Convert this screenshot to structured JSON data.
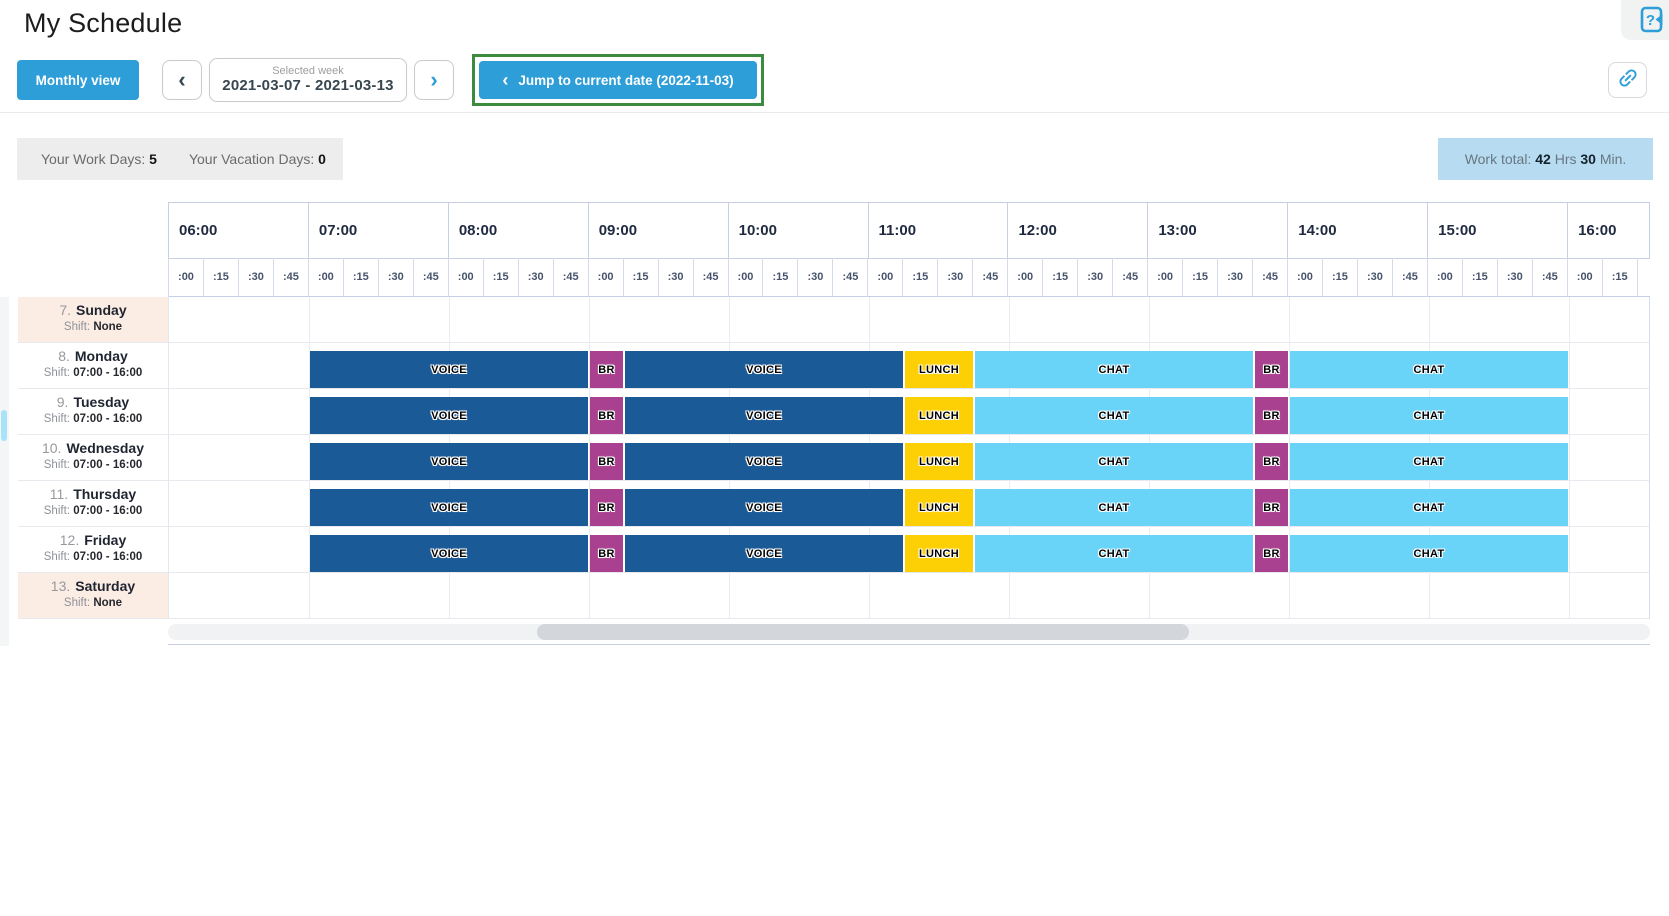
{
  "header": {
    "title": "My Schedule"
  },
  "toolbar": {
    "monthly_view_label": "Monthly view",
    "prev_icon": "‹",
    "next_icon": "›",
    "selected_week_label": "Selected week",
    "selected_week_value": "2021-03-07 - 2021-03-13",
    "jump_chevron_icon": "‹",
    "jump_label": "Jump to current date (2022-11-03)",
    "highlight_color": "#3c8c40",
    "accent_color": "#2d9ed8"
  },
  "summary": {
    "work_days_label": "Your Work Days:",
    "work_days_value": "5",
    "vacation_days_label": "Your Vacation Days:",
    "vacation_days_value": "0",
    "work_total_label": "Work total:",
    "work_total_hours": "42",
    "work_total_hours_unit": "Hrs",
    "work_total_minutes": "30",
    "work_total_minutes_unit": "Min."
  },
  "schedule": {
    "hours": [
      "06:00",
      "07:00",
      "08:00",
      "09:00",
      "10:00",
      "11:00",
      "12:00",
      "13:00",
      "14:00",
      "15:00",
      "16:00"
    ],
    "quarters": [
      ":00",
      ":15",
      ":30",
      ":45"
    ],
    "colors": {
      "voice": "#1a5a97",
      "br": "#aa4190",
      "lunch": "#fdd005",
      "chat": "#69d4f8"
    },
    "days": [
      {
        "number": "7.",
        "name": "Sunday",
        "shift_label": "Shift:",
        "shift_value": "None",
        "weekend": true,
        "activities": []
      },
      {
        "number": "8.",
        "name": "Monday",
        "shift_label": "Shift:",
        "shift_value": "07:00 - 16:00",
        "weekend": false,
        "activities": [
          {
            "type": "voice",
            "label": "VOICE",
            "start": 7,
            "end": 9
          },
          {
            "type": "br",
            "label": "BR",
            "start": 9,
            "end": 9.25
          },
          {
            "type": "voice",
            "label": "VOICE",
            "start": 9.25,
            "end": 11.25
          },
          {
            "type": "lunch",
            "label": "LUNCH",
            "start": 11.25,
            "end": 11.75
          },
          {
            "type": "chat",
            "label": "CHAT",
            "start": 11.75,
            "end": 13.75
          },
          {
            "type": "br",
            "label": "BR",
            "start": 13.75,
            "end": 14
          },
          {
            "type": "chat",
            "label": "CHAT",
            "start": 14,
            "end": 16
          }
        ]
      },
      {
        "number": "9.",
        "name": "Tuesday",
        "shift_label": "Shift:",
        "shift_value": "07:00 - 16:00",
        "weekend": false,
        "activities": [
          {
            "type": "voice",
            "label": "VOICE",
            "start": 7,
            "end": 9
          },
          {
            "type": "br",
            "label": "BR",
            "start": 9,
            "end": 9.25
          },
          {
            "type": "voice",
            "label": "VOICE",
            "start": 9.25,
            "end": 11.25
          },
          {
            "type": "lunch",
            "label": "LUNCH",
            "start": 11.25,
            "end": 11.75
          },
          {
            "type": "chat",
            "label": "CHAT",
            "start": 11.75,
            "end": 13.75
          },
          {
            "type": "br",
            "label": "BR",
            "start": 13.75,
            "end": 14
          },
          {
            "type": "chat",
            "label": "CHAT",
            "start": 14,
            "end": 16
          }
        ]
      },
      {
        "number": "10.",
        "name": "Wednesday",
        "shift_label": "Shift:",
        "shift_value": "07:00 - 16:00",
        "weekend": false,
        "activities": [
          {
            "type": "voice",
            "label": "VOICE",
            "start": 7,
            "end": 9
          },
          {
            "type": "br",
            "label": "BR",
            "start": 9,
            "end": 9.25
          },
          {
            "type": "voice",
            "label": "VOICE",
            "start": 9.25,
            "end": 11.25
          },
          {
            "type": "lunch",
            "label": "LUNCH",
            "start": 11.25,
            "end": 11.75
          },
          {
            "type": "chat",
            "label": "CHAT",
            "start": 11.75,
            "end": 13.75
          },
          {
            "type": "br",
            "label": "BR",
            "start": 13.75,
            "end": 14
          },
          {
            "type": "chat",
            "label": "CHAT",
            "start": 14,
            "end": 16
          }
        ]
      },
      {
        "number": "11.",
        "name": "Thursday",
        "shift_label": "Shift:",
        "shift_value": "07:00 - 16:00",
        "weekend": false,
        "activities": [
          {
            "type": "voice",
            "label": "VOICE",
            "start": 7,
            "end": 9
          },
          {
            "type": "br",
            "label": "BR",
            "start": 9,
            "end": 9.25
          },
          {
            "type": "voice",
            "label": "VOICE",
            "start": 9.25,
            "end": 11.25
          },
          {
            "type": "lunch",
            "label": "LUNCH",
            "start": 11.25,
            "end": 11.75
          },
          {
            "type": "chat",
            "label": "CHAT",
            "start": 11.75,
            "end": 13.75
          },
          {
            "type": "br",
            "label": "BR",
            "start": 13.75,
            "end": 14
          },
          {
            "type": "chat",
            "label": "CHAT",
            "start": 14,
            "end": 16
          }
        ]
      },
      {
        "number": "12.",
        "name": "Friday",
        "shift_label": "Shift:",
        "shift_value": "07:00 - 16:00",
        "weekend": false,
        "activities": [
          {
            "type": "voice",
            "label": "VOICE",
            "start": 7,
            "end": 9
          },
          {
            "type": "br",
            "label": "BR",
            "start": 9,
            "end": 9.25
          },
          {
            "type": "voice",
            "label": "VOICE",
            "start": 9.25,
            "end": 11.25
          },
          {
            "type": "lunch",
            "label": "LUNCH",
            "start": 11.25,
            "end": 11.75
          },
          {
            "type": "chat",
            "label": "CHAT",
            "start": 11.75,
            "end": 13.75
          },
          {
            "type": "br",
            "label": "BR",
            "start": 13.75,
            "end": 14
          },
          {
            "type": "chat",
            "label": "CHAT",
            "start": 14,
            "end": 16
          }
        ]
      },
      {
        "number": "13.",
        "name": "Saturday",
        "shift_label": "Shift:",
        "shift_value": "None",
        "weekend": true,
        "activities": []
      }
    ]
  }
}
